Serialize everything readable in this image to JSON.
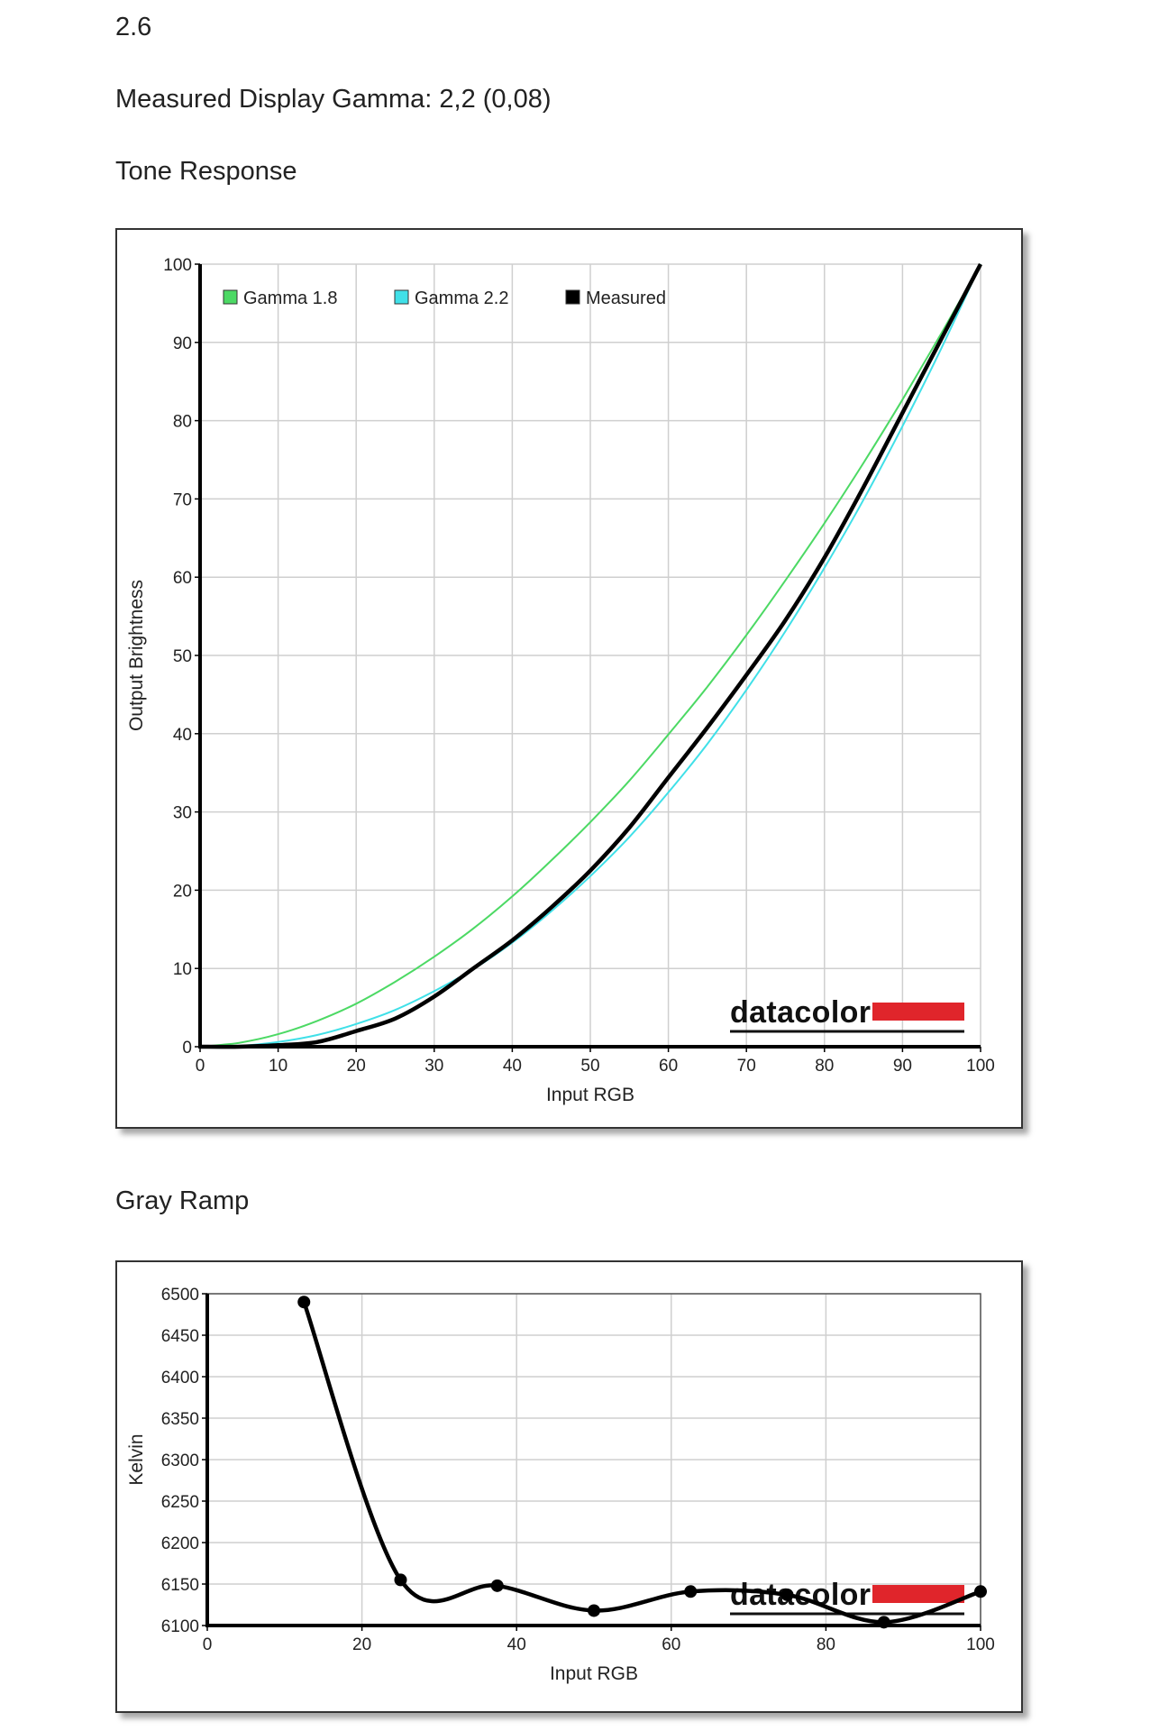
{
  "page": {
    "heading_value": "2.6",
    "gamma_line": "Measured Display Gamma: 2,2 (0,08)",
    "tone_title": "Tone Response",
    "gray_title": "Gray Ramp"
  },
  "chart_data": [
    {
      "type": "line",
      "title": "Tone Response",
      "xlabel": "Input RGB",
      "ylabel": "Output Brightness",
      "xlim": [
        0,
        100
      ],
      "ylim": [
        0,
        100
      ],
      "xticks": [
        0,
        10,
        20,
        30,
        40,
        50,
        60,
        70,
        80,
        90,
        100
      ],
      "yticks": [
        0,
        10,
        20,
        30,
        40,
        50,
        60,
        70,
        80,
        90,
        100
      ],
      "grid": true,
      "legend_position": "top-left",
      "logo": "datacolor",
      "series": [
        {
          "name": "Gamma 1.8",
          "color": "#4cd964",
          "x": [
            0,
            5,
            10,
            15,
            20,
            25,
            30,
            35,
            40,
            45,
            50,
            55,
            60,
            65,
            70,
            75,
            80,
            85,
            90,
            95,
            100
          ],
          "y": [
            0,
            0.5,
            1.6,
            3.3,
            5.5,
            8.3,
            11.5,
            15.1,
            19.2,
            23.8,
            28.7,
            34.0,
            39.9,
            46.0,
            52.6,
            59.6,
            66.9,
            74.6,
            82.7,
            91.2,
            100
          ]
        },
        {
          "name": "Gamma 2.2",
          "color": "#40e0e8",
          "x": [
            0,
            5,
            10,
            15,
            20,
            25,
            30,
            35,
            40,
            45,
            50,
            55,
            60,
            65,
            70,
            75,
            80,
            85,
            90,
            95,
            100
          ],
          "y": [
            0,
            0.1,
            0.6,
            1.5,
            2.9,
            4.7,
            7.1,
            9.9,
            13.3,
            17.3,
            21.8,
            26.8,
            32.5,
            38.7,
            45.6,
            53.1,
            61.2,
            69.9,
            79.3,
            89.3,
            100
          ]
        },
        {
          "name": "Measured",
          "color": "#000000",
          "x": [
            0,
            5,
            10,
            15,
            20,
            25,
            30,
            35,
            40,
            45,
            50,
            55,
            60,
            65,
            70,
            75,
            80,
            85,
            90,
            95,
            100
          ],
          "y": [
            0,
            0,
            0.2,
            0.6,
            2.0,
            3.6,
            6.4,
            10.0,
            13.6,
            17.8,
            22.5,
            28.0,
            34.4,
            40.8,
            47.5,
            54.5,
            62.5,
            71.5,
            81.0,
            90.5,
            100
          ]
        }
      ]
    },
    {
      "type": "line",
      "title": "Gray Ramp",
      "xlabel": "Input RGB",
      "ylabel": "Kelvin",
      "xlim": [
        0,
        100
      ],
      "ylim": [
        6100,
        6500
      ],
      "xticks": [
        0,
        20,
        40,
        60,
        80,
        100
      ],
      "yticks": [
        6100,
        6150,
        6200,
        6250,
        6300,
        6350,
        6400,
        6450,
        6500
      ],
      "grid": true,
      "logo": "datacolor",
      "series": [
        {
          "color": "#000000",
          "x": [
            12.5,
            25,
            37.5,
            50,
            62.5,
            75,
            87.5,
            100
          ],
          "y": [
            6490,
            6155,
            6148,
            6118,
            6141,
            6137,
            6104,
            6141
          ]
        }
      ]
    }
  ]
}
